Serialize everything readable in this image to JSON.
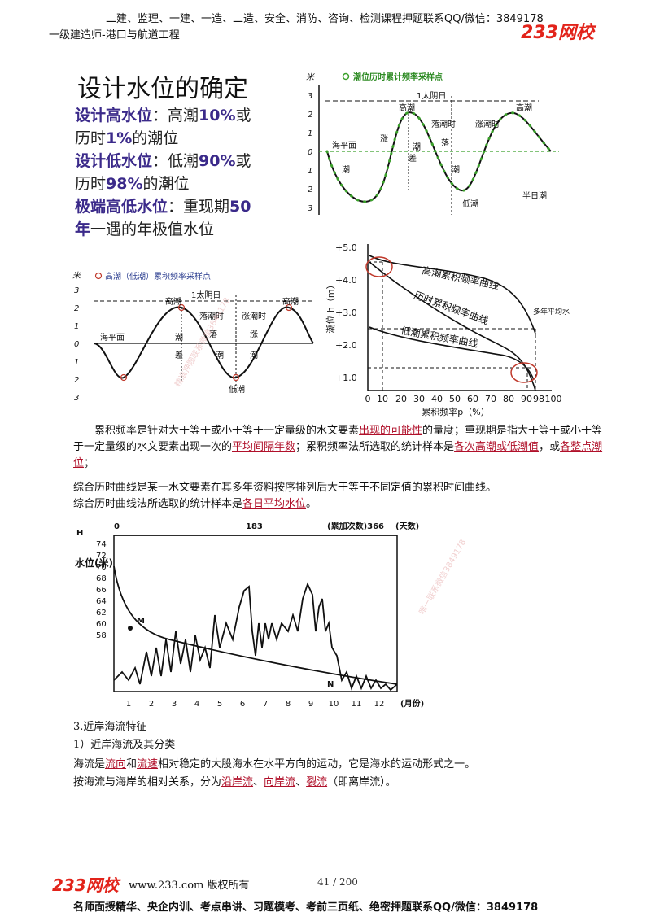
{
  "header": {
    "top_line": "二建、监理、一建、一造、二造、安全、消防、咨询、检测课程押题联系QQ/微信：3849178",
    "subtitle": "一级建造师-港口与航道工程",
    "logo": "233网校",
    "logo_url": "www.233.com"
  },
  "slide": {
    "title": "设计水位的确定",
    "l1_b": "设计高水位",
    "l1_t": "：高潮",
    "l1_b2": "10%",
    "l1_t2": "或",
    "l2_t": "历时",
    "l2_b": "1%",
    "l2_t2": "的潮位",
    "l3_b": "设计低水位",
    "l3_t": "：低潮",
    "l3_b2": "90%",
    "l3_t2": "或",
    "l4_t": "历时",
    "l4_b": "98%",
    "l4_t2": "的潮位",
    "l5_b": "极端高低水位",
    "l5_t": "：重现期",
    "l5_b2": "50",
    "l6_b": "年",
    "l6_t": "一遇的年极值水位"
  },
  "tide_top": {
    "legend": "潮位历时累计频率采样点",
    "unit": "米",
    "y_ticks": [
      "3",
      "2",
      "1",
      "0",
      "1",
      "2",
      "3"
    ],
    "day": "1太阴日",
    "labels": [
      "高潮",
      "高潮",
      "落潮时",
      "涨潮时",
      "海平面",
      "涨",
      "潮",
      "落",
      "潮",
      "差",
      "潮",
      "低潮",
      "半日潮"
    ]
  },
  "tide_bottom": {
    "legend": "高潮（低潮）累积频率采样点",
    "unit": "米",
    "y_ticks": [
      "3",
      "2",
      "1",
      "0",
      "1",
      "2",
      "3"
    ],
    "day": "1太阴日",
    "labels": [
      "高潮",
      "高潮",
      "落潮时",
      "涨潮时",
      "海平面",
      "潮",
      "落",
      "涨",
      "差",
      "潮",
      "潮",
      "低潮"
    ]
  },
  "freq_chart": {
    "ylabel": "潮位 h（m）",
    "xlabel": "累积频率p（%）",
    "y_ticks": [
      "+5.0",
      "+4.0",
      "+3.0",
      "+2.0",
      "+1.0"
    ],
    "x_ticks": [
      "0",
      "10",
      "20",
      "30",
      "40",
      "50",
      "60",
      "70",
      "80",
      "90",
      "98",
      "100"
    ],
    "curve1": "高潮累积频率曲线",
    "curve2": "历时累积频率曲线",
    "curve3": "低潮累积频率曲线",
    "avg": "多年平均水位"
  },
  "paragraphs": {
    "p1_a": "累积频率是针对大于等于或小于等于一定量级的水文要素",
    "p1_u1": "出现的可能性",
    "p1_b": "的量度；重现期是指大于等于或小于等于一定量级的水文要素出现一次的",
    "p1_u2": "平均间隔年数",
    "p1_c": "；累积频率法所选取的统计样本是",
    "p1_u3": "各次高潮或低潮值",
    "p1_d": "，或",
    "p1_u4": "各整点潮位",
    "p1_e": "；",
    "p2": "综合历时曲线是某一水文要素在其多年资料按序排列后大于等于不同定值的累积时间曲线。",
    "p3_a": "综合历时曲线法所选取的统计样本是",
    "p3_u": "各日平均水位",
    "p3_b": "。"
  },
  "hydro_chart": {
    "top_ticks": [
      "0",
      "183",
      "(累加次数)366",
      "(天数)"
    ],
    "h_label": "H",
    "ylabel": "水位(米)",
    "y_ticks": [
      "74",
      "72",
      "70",
      "68",
      "66",
      "64",
      "62",
      "60",
      "58"
    ],
    "x_ticks": [
      "1",
      "2",
      "3",
      "4",
      "5",
      "6",
      "7",
      "8",
      "9",
      "10",
      "11",
      "12"
    ],
    "xunit": "(月份)",
    "point_m": "M",
    "point_n": "N"
  },
  "section": {
    "heading": "3.近岸海流特征",
    "sub": "1）近岸海流及其分类",
    "s1_a": "海流是",
    "s1_u1": "流向",
    "s1_b": "和",
    "s1_u2": "流速",
    "s1_c": "相对稳定的大股海水在水平方向的运动，它是海水的运动形式之一。",
    "s2_a": "按海流与海岸的相对关系，分为",
    "s2_u1": "沿岸流",
    "s2_b": "、",
    "s2_u2": "向岸流",
    "s2_c": "、",
    "s2_u3": "裂流",
    "s2_d": "（即离岸流）。"
  },
  "watermarks": [
    "精准押题联系微信3849178",
    "唯一联系微信3849178"
  ],
  "footer": {
    "logo": "233网校",
    "copyright": "www.233.com 版权所有",
    "page": "41 / 200",
    "promo": "名师面授精华、央企内训、考点串讲、习题模考、考前三页纸、绝密押题联系QQ/微信：3849178"
  },
  "colors": {
    "accent": "#e2231a",
    "slide_bold": "#3b2a8a",
    "underline": "#b0102a",
    "curve_green": "#3aa02a"
  }
}
